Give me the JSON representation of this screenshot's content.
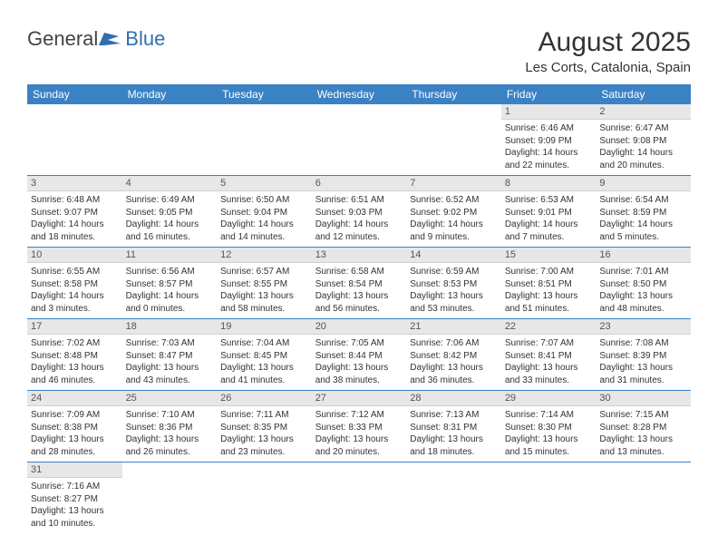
{
  "brand": {
    "part1": "General",
    "part2": "Blue"
  },
  "title": "August 2025",
  "location": "Les Corts, Catalonia, Spain",
  "header_bg": "#3b82c4",
  "header_fg": "#ffffff",
  "daynum_bg": "#e7e7e7",
  "border_color": "#3b82c4",
  "weekdays": [
    "Sunday",
    "Monday",
    "Tuesday",
    "Wednesday",
    "Thursday",
    "Friday",
    "Saturday"
  ],
  "weeks": [
    [
      null,
      null,
      null,
      null,
      null,
      {
        "n": "1",
        "sr": "Sunrise: 6:46 AM",
        "ss": "Sunset: 9:09 PM",
        "d1": "Daylight: 14 hours",
        "d2": "and 22 minutes."
      },
      {
        "n": "2",
        "sr": "Sunrise: 6:47 AM",
        "ss": "Sunset: 9:08 PM",
        "d1": "Daylight: 14 hours",
        "d2": "and 20 minutes."
      }
    ],
    [
      {
        "n": "3",
        "sr": "Sunrise: 6:48 AM",
        "ss": "Sunset: 9:07 PM",
        "d1": "Daylight: 14 hours",
        "d2": "and 18 minutes."
      },
      {
        "n": "4",
        "sr": "Sunrise: 6:49 AM",
        "ss": "Sunset: 9:05 PM",
        "d1": "Daylight: 14 hours",
        "d2": "and 16 minutes."
      },
      {
        "n": "5",
        "sr": "Sunrise: 6:50 AM",
        "ss": "Sunset: 9:04 PM",
        "d1": "Daylight: 14 hours",
        "d2": "and 14 minutes."
      },
      {
        "n": "6",
        "sr": "Sunrise: 6:51 AM",
        "ss": "Sunset: 9:03 PM",
        "d1": "Daylight: 14 hours",
        "d2": "and 12 minutes."
      },
      {
        "n": "7",
        "sr": "Sunrise: 6:52 AM",
        "ss": "Sunset: 9:02 PM",
        "d1": "Daylight: 14 hours",
        "d2": "and 9 minutes."
      },
      {
        "n": "8",
        "sr": "Sunrise: 6:53 AM",
        "ss": "Sunset: 9:01 PM",
        "d1": "Daylight: 14 hours",
        "d2": "and 7 minutes."
      },
      {
        "n": "9",
        "sr": "Sunrise: 6:54 AM",
        "ss": "Sunset: 8:59 PM",
        "d1": "Daylight: 14 hours",
        "d2": "and 5 minutes."
      }
    ],
    [
      {
        "n": "10",
        "sr": "Sunrise: 6:55 AM",
        "ss": "Sunset: 8:58 PM",
        "d1": "Daylight: 14 hours",
        "d2": "and 3 minutes."
      },
      {
        "n": "11",
        "sr": "Sunrise: 6:56 AM",
        "ss": "Sunset: 8:57 PM",
        "d1": "Daylight: 14 hours",
        "d2": "and 0 minutes."
      },
      {
        "n": "12",
        "sr": "Sunrise: 6:57 AM",
        "ss": "Sunset: 8:55 PM",
        "d1": "Daylight: 13 hours",
        "d2": "and 58 minutes."
      },
      {
        "n": "13",
        "sr": "Sunrise: 6:58 AM",
        "ss": "Sunset: 8:54 PM",
        "d1": "Daylight: 13 hours",
        "d2": "and 56 minutes."
      },
      {
        "n": "14",
        "sr": "Sunrise: 6:59 AM",
        "ss": "Sunset: 8:53 PM",
        "d1": "Daylight: 13 hours",
        "d2": "and 53 minutes."
      },
      {
        "n": "15",
        "sr": "Sunrise: 7:00 AM",
        "ss": "Sunset: 8:51 PM",
        "d1": "Daylight: 13 hours",
        "d2": "and 51 minutes."
      },
      {
        "n": "16",
        "sr": "Sunrise: 7:01 AM",
        "ss": "Sunset: 8:50 PM",
        "d1": "Daylight: 13 hours",
        "d2": "and 48 minutes."
      }
    ],
    [
      {
        "n": "17",
        "sr": "Sunrise: 7:02 AM",
        "ss": "Sunset: 8:48 PM",
        "d1": "Daylight: 13 hours",
        "d2": "and 46 minutes."
      },
      {
        "n": "18",
        "sr": "Sunrise: 7:03 AM",
        "ss": "Sunset: 8:47 PM",
        "d1": "Daylight: 13 hours",
        "d2": "and 43 minutes."
      },
      {
        "n": "19",
        "sr": "Sunrise: 7:04 AM",
        "ss": "Sunset: 8:45 PM",
        "d1": "Daylight: 13 hours",
        "d2": "and 41 minutes."
      },
      {
        "n": "20",
        "sr": "Sunrise: 7:05 AM",
        "ss": "Sunset: 8:44 PM",
        "d1": "Daylight: 13 hours",
        "d2": "and 38 minutes."
      },
      {
        "n": "21",
        "sr": "Sunrise: 7:06 AM",
        "ss": "Sunset: 8:42 PM",
        "d1": "Daylight: 13 hours",
        "d2": "and 36 minutes."
      },
      {
        "n": "22",
        "sr": "Sunrise: 7:07 AM",
        "ss": "Sunset: 8:41 PM",
        "d1": "Daylight: 13 hours",
        "d2": "and 33 minutes."
      },
      {
        "n": "23",
        "sr": "Sunrise: 7:08 AM",
        "ss": "Sunset: 8:39 PM",
        "d1": "Daylight: 13 hours",
        "d2": "and 31 minutes."
      }
    ],
    [
      {
        "n": "24",
        "sr": "Sunrise: 7:09 AM",
        "ss": "Sunset: 8:38 PM",
        "d1": "Daylight: 13 hours",
        "d2": "and 28 minutes."
      },
      {
        "n": "25",
        "sr": "Sunrise: 7:10 AM",
        "ss": "Sunset: 8:36 PM",
        "d1": "Daylight: 13 hours",
        "d2": "and 26 minutes."
      },
      {
        "n": "26",
        "sr": "Sunrise: 7:11 AM",
        "ss": "Sunset: 8:35 PM",
        "d1": "Daylight: 13 hours",
        "d2": "and 23 minutes."
      },
      {
        "n": "27",
        "sr": "Sunrise: 7:12 AM",
        "ss": "Sunset: 8:33 PM",
        "d1": "Daylight: 13 hours",
        "d2": "and 20 minutes."
      },
      {
        "n": "28",
        "sr": "Sunrise: 7:13 AM",
        "ss": "Sunset: 8:31 PM",
        "d1": "Daylight: 13 hours",
        "d2": "and 18 minutes."
      },
      {
        "n": "29",
        "sr": "Sunrise: 7:14 AM",
        "ss": "Sunset: 8:30 PM",
        "d1": "Daylight: 13 hours",
        "d2": "and 15 minutes."
      },
      {
        "n": "30",
        "sr": "Sunrise: 7:15 AM",
        "ss": "Sunset: 8:28 PM",
        "d1": "Daylight: 13 hours",
        "d2": "and 13 minutes."
      }
    ],
    [
      {
        "n": "31",
        "sr": "Sunrise: 7:16 AM",
        "ss": "Sunset: 8:27 PM",
        "d1": "Daylight: 13 hours",
        "d2": "and 10 minutes."
      },
      null,
      null,
      null,
      null,
      null,
      null
    ]
  ]
}
